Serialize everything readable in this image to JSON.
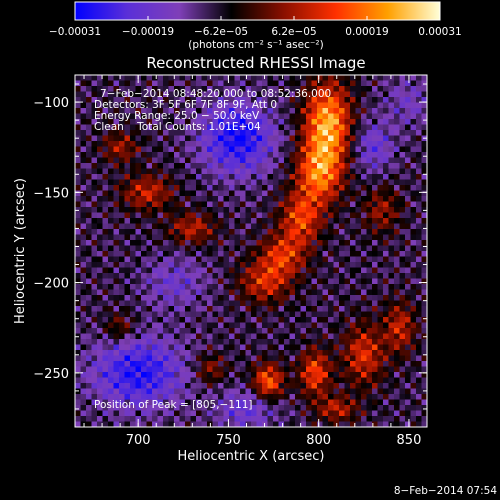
{
  "chart_data": {
    "type": "heatmap",
    "title": "Reconstructed RHESSI Image",
    "xlabel": "Heliocentric X (arcsec)",
    "ylabel": "Heliocentric Y (arcsec)",
    "xlim": [
      665,
      860
    ],
    "ylim": [
      -280,
      -85
    ],
    "x_ticks": [
      700,
      750,
      800,
      850
    ],
    "y_ticks": [
      -100,
      -150,
      -200,
      -250
    ],
    "x_tick_labels": [
      "700",
      "750",
      "800",
      "850"
    ],
    "y_tick_labels": [
      "−100",
      "−150",
      "−200",
      "−250"
    ],
    "colorbar": {
      "range": [
        -0.00031,
        0.00031
      ],
      "tick_labels": [
        "−0.00031",
        "−0.00019",
        "−6.2e−05",
        "6.2e−05",
        "0.00019",
        "0.00031"
      ],
      "unit_label": "(photons cm⁻² s⁻¹ asec⁻²)",
      "colors": [
        "#0000ff",
        "#5a2fd8",
        "#7f3fb8",
        "#000000",
        "#8a0f00",
        "#ff3000",
        "#ffa000",
        "#ffffd8"
      ]
    },
    "info_lines": [
      "7−Feb−2014 08:48:20.000 to 08:52:36.000",
      "Detectors: 3F 5F 6F 7F 8F 9F, Att 0",
      "Energy Range: 25.0 − 50.0 keV",
      "Clean    Total Counts: 1.01E+04"
    ],
    "peak_label": "Position of Peak = [805,−111]",
    "peak": [
      805,
      -111
    ],
    "blobs": [
      {
        "x": 805,
        "y": -112,
        "v": 0.00031,
        "sx": 9,
        "sy": 16
      },
      {
        "x": 800,
        "y": -140,
        "v": 0.00024,
        "sx": 9,
        "sy": 12
      },
      {
        "x": 790,
        "y": -165,
        "v": 0.0002,
        "sx": 8,
        "sy": 10
      },
      {
        "x": 780,
        "y": -185,
        "v": 0.00018,
        "sx": 9,
        "sy": 8
      },
      {
        "x": 770,
        "y": -200,
        "v": 0.00017,
        "sx": 10,
        "sy": 8
      },
      {
        "x": 772,
        "y": -255,
        "v": 0.00024,
        "sx": 6,
        "sy": 7
      },
      {
        "x": 798,
        "y": -250,
        "v": 0.00021,
        "sx": 6,
        "sy": 9
      },
      {
        "x": 825,
        "y": -240,
        "v": 0.00018,
        "sx": 8,
        "sy": 12
      },
      {
        "x": 845,
        "y": -225,
        "v": 0.00016,
        "sx": 6,
        "sy": 10
      },
      {
        "x": 810,
        "y": -270,
        "v": 0.00015,
        "sx": 8,
        "sy": 5
      },
      {
        "x": 740,
        "y": -248,
        "v": 0.00012,
        "sx": 6,
        "sy": 6
      },
      {
        "x": 705,
        "y": -150,
        "v": 0.00016,
        "sx": 10,
        "sy": 7
      },
      {
        "x": 730,
        "y": -170,
        "v": 0.00015,
        "sx": 9,
        "sy": 6
      },
      {
        "x": 690,
        "y": -125,
        "v": 0.00013,
        "sx": 7,
        "sy": 6
      },
      {
        "x": 690,
        "y": -225,
        "v": 0.00011,
        "sx": 6,
        "sy": 6
      },
      {
        "x": 835,
        "y": -160,
        "v": 0.00012,
        "sx": 7,
        "sy": 9
      },
      {
        "x": 755,
        "y": -120,
        "v": -0.00022,
        "sx": 14,
        "sy": 14
      },
      {
        "x": 700,
        "y": -250,
        "v": -0.0002,
        "sx": 18,
        "sy": 14
      },
      {
        "x": 760,
        "y": -270,
        "v": -0.00012,
        "sx": 12,
        "sy": 8
      },
      {
        "x": 720,
        "y": -200,
        "v": -0.0001,
        "sx": 12,
        "sy": 10
      },
      {
        "x": 830,
        "y": -125,
        "v": -0.00012,
        "sx": 8,
        "sy": 10
      },
      {
        "x": 850,
        "y": -100,
        "v": -8e-05,
        "sx": 10,
        "sy": 10
      }
    ]
  },
  "footer": {
    "timestamp": "8−Feb−2014 07:54"
  }
}
